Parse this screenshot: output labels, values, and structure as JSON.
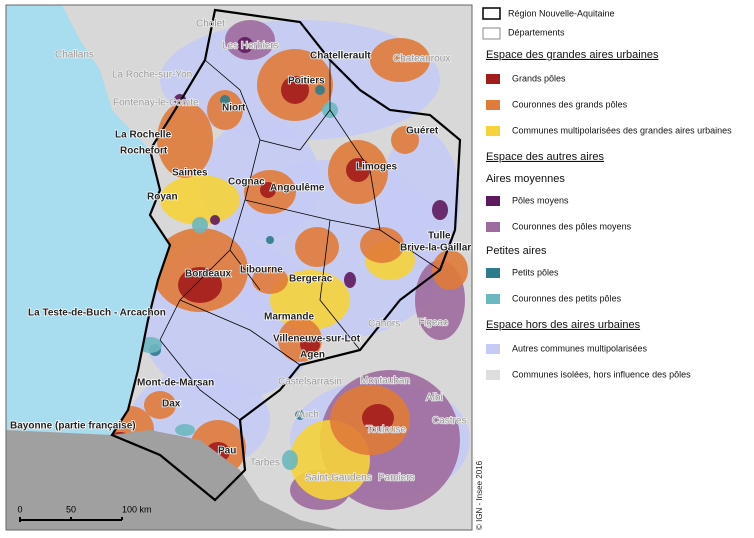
{
  "map": {
    "cities": [
      "Cholet",
      "Les Herbiers",
      "Challans",
      "La Roche-sur-Yon",
      "Chatellerault",
      "Poitiers",
      "Chateauroux",
      "Fontenay-le-Comte",
      "Niort",
      "La Rochelle",
      "Rochefort",
      "Guéret",
      "Limoges",
      "Saintes",
      "Cognac",
      "Angoulême",
      "Royan",
      "Tulle",
      "Brive-la-Gaillarde",
      "Bordeaux",
      "Libourne",
      "Bergerac",
      "La Teste-de-Buch - Arcachon",
      "Cahors",
      "Figeac",
      "Marmande",
      "Villeneuve-sur-Lot",
      "Agen",
      "Castelsarrasin",
      "Mont-de-Marsan",
      "Montauban",
      "Albi",
      "Dax",
      "Auch",
      "Castres",
      "Bayonne (partie française)",
      "Toulouse",
      "Pau",
      "Tarbes",
      "Saint-Gaudens",
      "Pamiers"
    ],
    "scale": [
      "0",
      "50",
      "100 km"
    ],
    "credit": "© IGN - Insee 2016"
  },
  "legend": {
    "boundaries": [
      "Région Nouvelle-Aquitaine",
      "Départements"
    ],
    "sections": [
      {
        "title": "Espace des grandes aires urbaines",
        "items": [
          {
            "label": "Grands pôles",
            "color": "#a31c1c"
          },
          {
            "label": "Couronnes des grands pôles",
            "color": "#e07b39"
          },
          {
            "label": "Communes multipolarisées des grandes aires urbaines",
            "color": "#f5d33b"
          }
        ]
      },
      {
        "title": "Espace des autres aires",
        "groups": [
          {
            "title": "Aires moyennes",
            "items": [
              {
                "label": "Pôles moyens",
                "color": "#5e1a5e"
              },
              {
                "label": "Couronnes des pôles moyens",
                "color": "#9e6b9e"
              }
            ]
          },
          {
            "title": "Petites aires",
            "items": [
              {
                "label": "Petits pôles",
                "color": "#2e7b8c"
              },
              {
                "label": "Couronnes des petits pôles",
                "color": "#6bb8c0"
              }
            ]
          }
        ]
      },
      {
        "title": "Espace hors des aires urbaines",
        "items": [
          {
            "label": "Autres communes multipolarisées",
            "color": "#c5cbf5"
          },
          {
            "label": "Communes isolées, hors influence des pôles",
            "color": "#dedede"
          }
        ]
      }
    ]
  }
}
